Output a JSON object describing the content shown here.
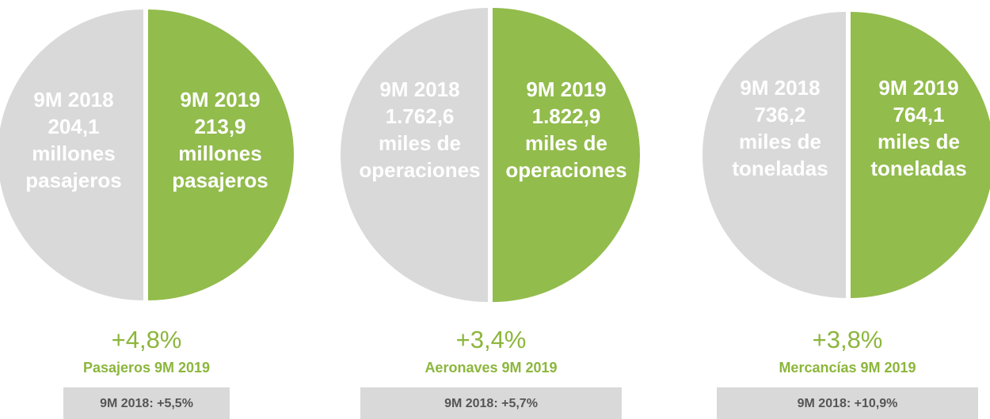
{
  "panels": [
    {
      "left": [
        "9M 2018",
        "204,1",
        "millones",
        "pasajeros"
      ],
      "right": [
        "9M 2019",
        "213,9",
        "millones",
        "pasajeros"
      ],
      "change": "+4,8%",
      "label": "Pasajeros 9M 2019",
      "previous": "9M 2018: +5,5%"
    },
    {
      "left": [
        "9M 2018",
        "1.762,6",
        "miles de",
        "operaciones"
      ],
      "right": [
        "9M 2019",
        "1.822,9",
        "miles de",
        "operaciones"
      ],
      "change": "+3,4%",
      "label": "Aeronaves 9M 2019",
      "previous": "9M 2018: +5,7%"
    },
    {
      "left": [
        "9M 2018",
        "736,2",
        "miles de",
        "toneladas"
      ],
      "right": [
        "9M 2019",
        "764,1",
        "miles de",
        "toneladas"
      ],
      "change": "+3,8%",
      "label": "Mercancías 9M 2019",
      "previous": "9M 2018: +10,9%"
    }
  ]
}
